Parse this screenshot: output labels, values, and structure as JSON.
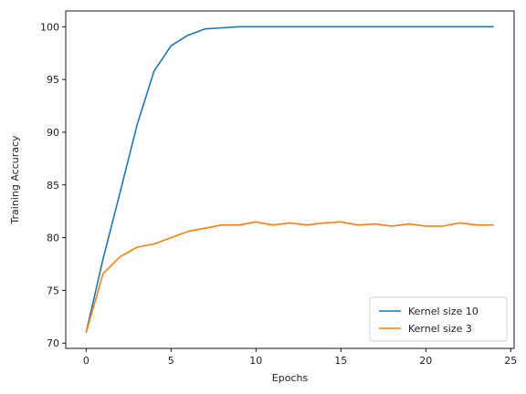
{
  "chart_data": {
    "type": "line",
    "title": "",
    "xlabel": "Epochs",
    "ylabel": "Training Accuracy",
    "xlim": [
      -1.2,
      25.2
    ],
    "ylim": [
      69.5,
      101.5
    ],
    "xticks": [
      0,
      5,
      10,
      15,
      20,
      25
    ],
    "yticks": [
      70,
      75,
      80,
      85,
      90,
      95,
      100
    ],
    "grid": false,
    "legend_position": "bottom-right",
    "x": [
      0,
      1,
      2,
      3,
      4,
      5,
      6,
      7,
      8,
      9,
      10,
      11,
      12,
      13,
      14,
      15,
      16,
      17,
      18,
      19,
      20,
      21,
      22,
      23,
      24
    ],
    "series": [
      {
        "name": "Kernel size 10",
        "color": "#1f77b4",
        "values": [
          71.0,
          78.0,
          84.3,
          90.7,
          95.8,
          98.2,
          99.2,
          99.8,
          99.9,
          100.0,
          100.0,
          100.0,
          100.0,
          100.0,
          100.0,
          100.0,
          100.0,
          100.0,
          100.0,
          100.0,
          100.0,
          100.0,
          100.0,
          100.0,
          100.0
        ]
      },
      {
        "name": "Kernel size 3",
        "color": "#ff7f0e",
        "values": [
          71.0,
          76.6,
          78.2,
          79.1,
          79.4,
          80.0,
          80.6,
          80.9,
          81.2,
          81.2,
          81.5,
          81.2,
          81.4,
          81.2,
          81.4,
          81.5,
          81.2,
          81.3,
          81.1,
          81.3,
          81.1,
          81.1,
          81.4,
          81.2,
          81.2
        ]
      }
    ]
  }
}
